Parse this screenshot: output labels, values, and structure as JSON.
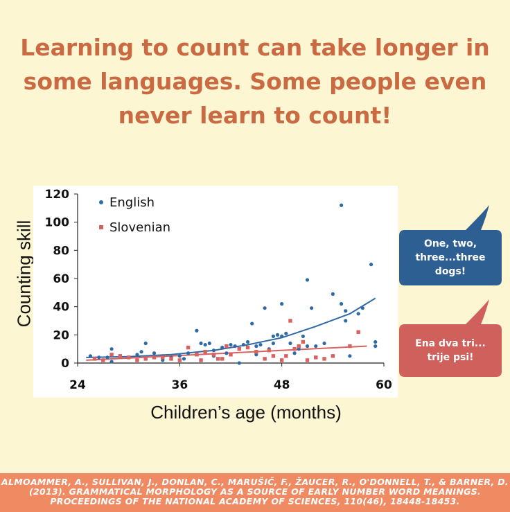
{
  "headline": "Learning to count can take longer in some languages. Some people even never learn to count!",
  "bubbles": {
    "english": "One, two, three...three dogs!",
    "slovenian": "Ena dva tri... trije psi!"
  },
  "colors": {
    "background": "#fdf6d3",
    "headline": "#c96a43",
    "english": "#2e6aa5",
    "slovenian": "#d9615f",
    "english_bubble": "#2d5f93",
    "slovenian_bubble": "#d0605b",
    "citation_band": "#ef8a63"
  },
  "citation": "Almoammer, A., Sullivan, J., Donlan, C., Marušič, F., Žaucer, R., O'Donnell, T., & Barner, D. (2013). Grammatical morphology as a source of early number word meanings. Proceedings of the National Academy of Sciences, 110(46), 18448-18453.",
  "chart_data": {
    "type": "scatter",
    "xlabel": "Children’s age (months)",
    "ylabel": "Counting skill",
    "xlim": [
      24,
      60
    ],
    "ylim": [
      0,
      120
    ],
    "xticks": [
      24,
      36,
      48,
      60
    ],
    "yticks": [
      0,
      20,
      40,
      60,
      80,
      100,
      120
    ],
    "grid": false,
    "legend_position": "top-left",
    "series": [
      {
        "name": "English",
        "marker": "circle",
        "points": [
          [
            25.5,
            5
          ],
          [
            26.5,
            4
          ],
          [
            27.5,
            4
          ],
          [
            28,
            10
          ],
          [
            28,
            1
          ],
          [
            29,
            5
          ],
          [
            30,
            4
          ],
          [
            31,
            6
          ],
          [
            31.5,
            8
          ],
          [
            32,
            14
          ],
          [
            32,
            3
          ],
          [
            33,
            7
          ],
          [
            34,
            5
          ],
          [
            34,
            2
          ],
          [
            35,
            4
          ],
          [
            36,
            5
          ],
          [
            36.5,
            3
          ],
          [
            37,
            7
          ],
          [
            38,
            23
          ],
          [
            38.5,
            14
          ],
          [
            39,
            13
          ],
          [
            39.5,
            14
          ],
          [
            40,
            9
          ],
          [
            40,
            5
          ],
          [
            41,
            11
          ],
          [
            41.5,
            7
          ],
          [
            42,
            13
          ],
          [
            42.5,
            12
          ],
          [
            43,
            0
          ],
          [
            43.5,
            13
          ],
          [
            44,
            15
          ],
          [
            44.5,
            28
          ],
          [
            45,
            12
          ],
          [
            45,
            6
          ],
          [
            45.5,
            13
          ],
          [
            46,
            39
          ],
          [
            46.5,
            10
          ],
          [
            47,
            14
          ],
          [
            47,
            19
          ],
          [
            47.5,
            20
          ],
          [
            48,
            42
          ],
          [
            48,
            19
          ],
          [
            48.5,
            21
          ],
          [
            49,
            14
          ],
          [
            49.5,
            7
          ],
          [
            50,
            10
          ],
          [
            50.5,
            19
          ],
          [
            51,
            59
          ],
          [
            51,
            12
          ],
          [
            51.5,
            39
          ],
          [
            52,
            12
          ],
          [
            53,
            14
          ],
          [
            54,
            49
          ],
          [
            55,
            112
          ],
          [
            55,
            42
          ],
          [
            55.5,
            30
          ],
          [
            55.5,
            37
          ],
          [
            56,
            5
          ],
          [
            57,
            35
          ],
          [
            57.5,
            39
          ],
          [
            58.5,
            70
          ],
          [
            59,
            15
          ],
          [
            59,
            12
          ]
        ]
      },
      {
        "name": "Slovenian",
        "marker": "square",
        "points": [
          [
            26,
            3
          ],
          [
            27,
            2
          ],
          [
            28,
            6
          ],
          [
            29,
            5
          ],
          [
            30,
            4
          ],
          [
            31,
            2
          ],
          [
            32,
            3
          ],
          [
            33,
            4
          ],
          [
            34,
            4
          ],
          [
            35,
            3
          ],
          [
            36,
            2
          ],
          [
            37,
            11
          ],
          [
            38,
            6
          ],
          [
            38.5,
            2
          ],
          [
            39,
            8
          ],
          [
            40,
            6
          ],
          [
            40.5,
            3
          ],
          [
            41,
            3
          ],
          [
            41.5,
            12
          ],
          [
            42,
            6
          ],
          [
            43,
            10
          ],
          [
            44,
            11
          ],
          [
            45,
            8
          ],
          [
            46,
            3
          ],
          [
            46.5,
            9
          ],
          [
            47,
            5
          ],
          [
            48,
            2
          ],
          [
            48.5,
            5
          ],
          [
            49,
            30
          ],
          [
            49.5,
            10
          ],
          [
            50,
            12
          ],
          [
            50.5,
            15
          ],
          [
            51,
            2
          ],
          [
            52,
            4
          ],
          [
            53,
            3
          ],
          [
            54,
            5
          ],
          [
            56,
            12
          ],
          [
            57,
            22
          ]
        ]
      }
    ],
    "trend_lines": [
      {
        "series": "English",
        "x": [
          25,
          30,
          35,
          40,
          44,
          48,
          52,
          56,
          59
        ],
        "y": [
          4,
          4.5,
          6,
          9,
          13,
          18,
          26,
          35,
          46
        ]
      },
      {
        "series": "Slovenian",
        "x": [
          25,
          58
        ],
        "y": [
          2,
          12
        ]
      }
    ]
  }
}
